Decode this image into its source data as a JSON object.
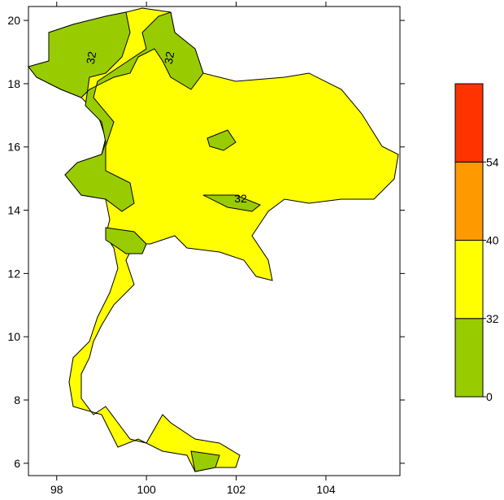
{
  "axes": {
    "xlim": [
      97.37,
      105.65
    ],
    "ylim": [
      5.61,
      20.44
    ],
    "xticks": [
      98,
      100,
      102,
      104
    ],
    "yticks": [
      6,
      8,
      10,
      12,
      14,
      16,
      18,
      20
    ]
  },
  "colorbar": {
    "levels": [
      0,
      32,
      40,
      54
    ],
    "colors": [
      "#99cc00",
      "#ffff00",
      "#ff9900",
      "#ff3300"
    ]
  },
  "contour_labels": [
    "32",
    "32",
    "32"
  ]
}
